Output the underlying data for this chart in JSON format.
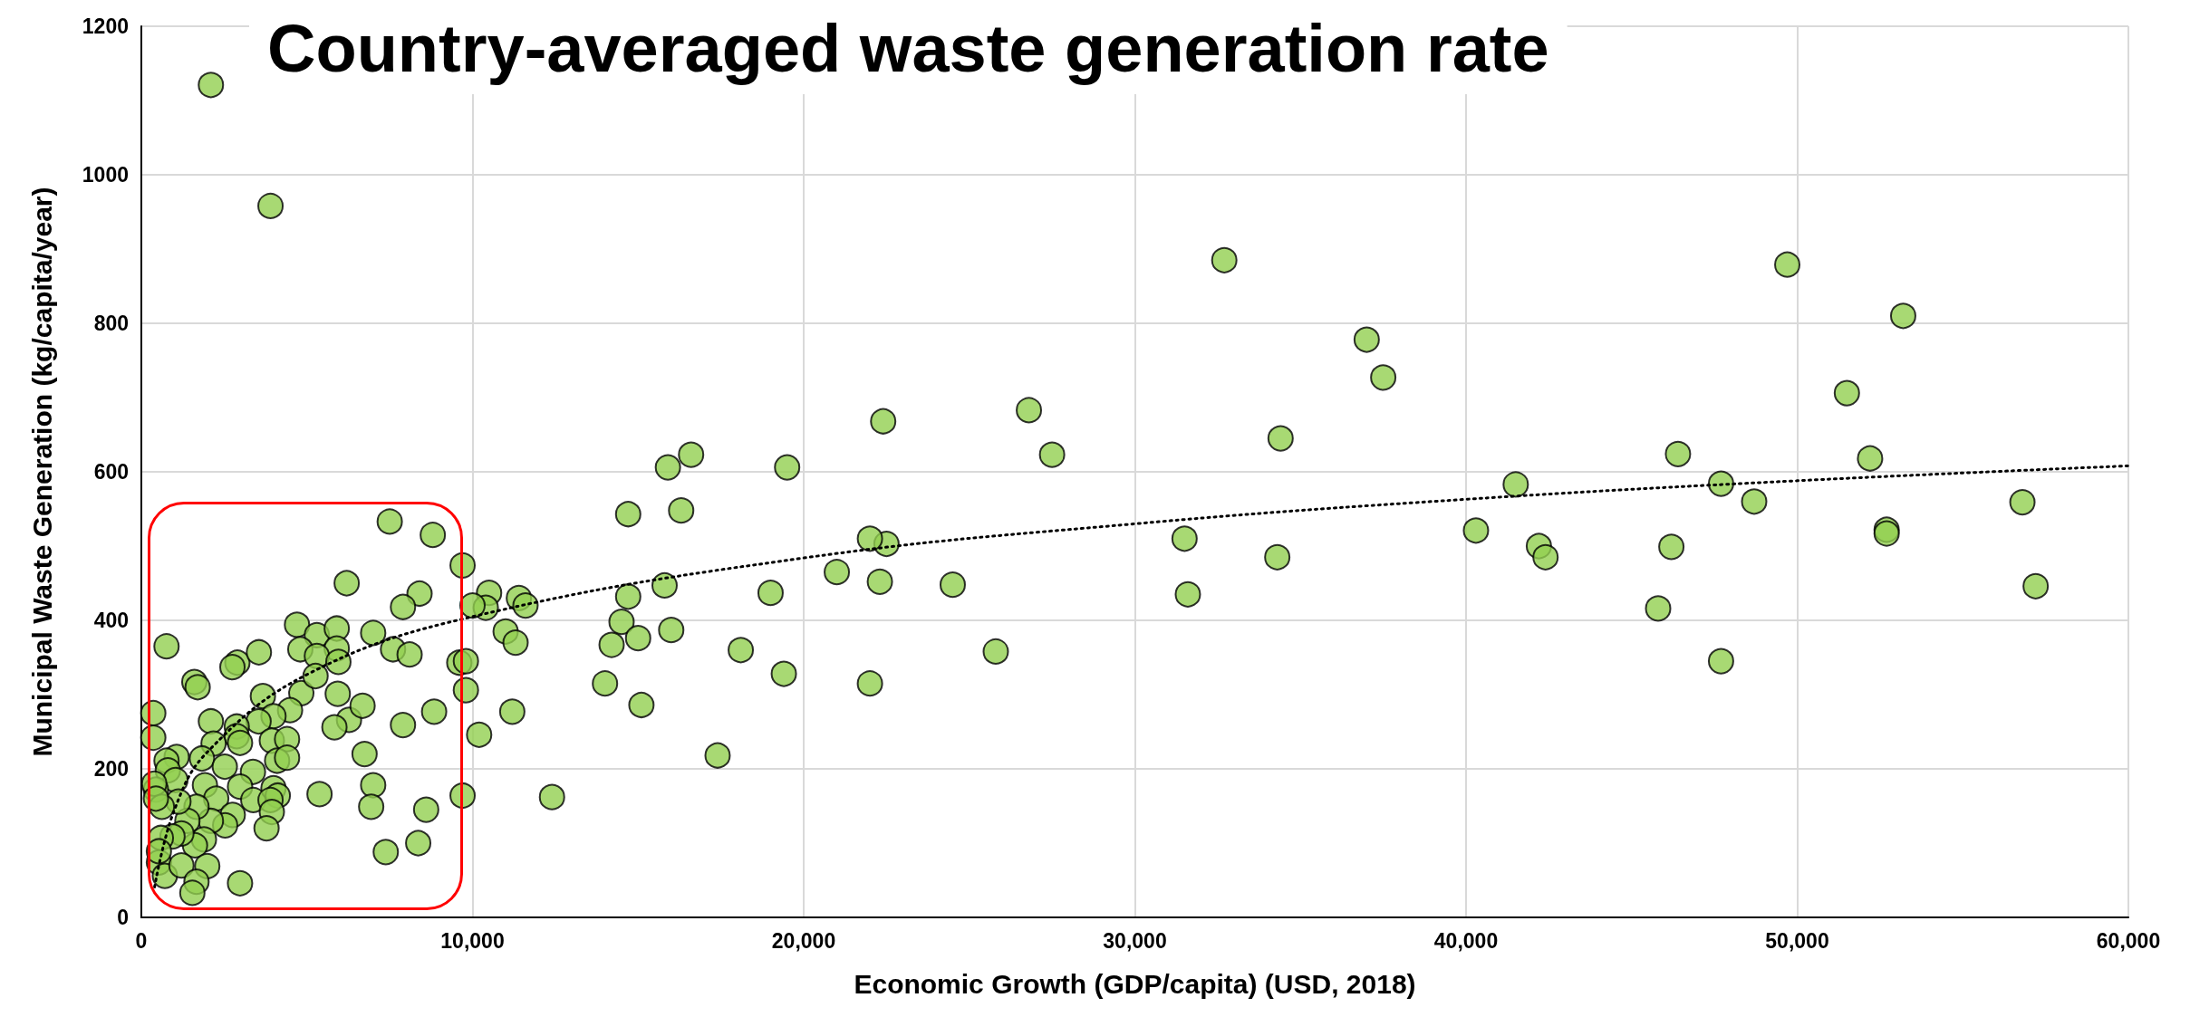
{
  "chart_data": {
    "type": "scatter",
    "title": "Country-averaged waste generation rate",
    "xlabel": "Economic Growth (GDP/capita) (USD, 2018)",
    "ylabel": "Municipal Waste Generation (kg/capita/year)",
    "xlim": [
      0,
      60000
    ],
    "ylim": [
      0,
      1200
    ],
    "xticks": [
      0,
      {
        "value": 10000,
        "label": "10,000"
      },
      {
        "value": 20000,
        "label": "20,000"
      },
      {
        "value": 30000,
        "label": "30,000"
      },
      {
        "value": 40000,
        "label": "40,000"
      },
      {
        "value": 50000,
        "label": "50,000"
      },
      {
        "value": 60000,
        "label": "60,000"
      }
    ],
    "yticks": [
      0,
      200,
      400,
      600,
      800,
      1000,
      1200
    ],
    "grid": true,
    "marker": "circle",
    "series": [
      {
        "color": "#92d050",
        "x": [
          2100,
          3900,
          32700,
          37000,
          37500,
          34400,
          34300,
          31500,
          31600,
          26800,
          27500,
          24500,
          25800,
          22400,
          22500,
          22000,
          22300,
          21000,
          22000,
          19500,
          19000,
          19400,
          18100,
          17400,
          16600,
          15900,
          16300,
          14700,
          15800,
          14700,
          14500,
          15000,
          16000,
          14200,
          14000,
          15100,
          12400,
          11400,
          11600,
          11000,
          11300,
          11200,
          10500,
          10400,
          10000,
          10200,
          9700,
          9600,
          9800,
          9800,
          9700,
          40300,
          41500,
          42200,
          42400,
          45800,
          46200,
          46400,
          47700,
          47700,
          48700,
          49700,
          51500,
          52200,
          53200,
          52700,
          52700,
          56800,
          57200,
          7500,
          8800,
          6200,
          8400,
          7900,
          760,
          4700,
          5300,
          5900,
          7000,
          4800,
          5900,
          5300,
          5950,
          7600,
          8100,
          2900,
          2750,
          3550,
          1600,
          1700,
          360,
          360,
          3670,
          4830,
          5260,
          5930,
          4490,
          3990,
          3540,
          2100,
          2880,
          2880,
          2980,
          3940,
          4400,
          4100,
          4400,
          2180,
          1830,
          6270,
          6680,
          5830,
          6740,
          7900,
          8840,
          7000,
          6940,
          5380,
          8600,
          7380,
          8360,
          2520,
          3370,
          1065,
          760,
          800,
          1030,
          440,
          390,
          1920,
          2980,
          2260,
          3380,
          3990,
          4120,
          3900,
          3940,
          3780,
          2760,
          2530,
          2100,
          1665,
          1390,
          1120,
          620,
          440,
          1890,
          1620,
          1210,
          940,
          590,
          530,
          710,
          530,
          1210,
          1990,
          1665,
          1540,
          2980
        ],
        "values": [
          1121,
          958,
          885,
          778,
          727,
          645,
          485,
          510,
          435,
          683,
          623,
          448,
          358,
          668,
          503,
          510,
          452,
          465,
          315,
          606,
          437,
          328,
          360,
          218,
          623,
          606,
          548,
          543,
          447,
          432,
          398,
          376,
          387,
          367,
          315,
          286,
          162,
          430,
          420,
          385,
          370,
          277,
          437,
          417,
          420,
          246,
          474,
          343,
          345,
          306,
          164,
          521,
          583,
          500,
          485,
          416,
          499,
          624,
          584,
          345,
          560,
          879,
          706,
          618,
          810,
          522,
          517,
          559,
          446,
          533,
          515,
          450,
          436,
          418,
          365,
          394,
          380,
          389,
          383,
          361,
          362,
          352,
          344,
          361,
          354,
          343,
          337,
          357,
          317,
          310,
          275,
          242,
          298,
          302,
          325,
          301,
          279,
          271,
          264,
          264,
          257,
          244,
          235,
          238,
          240,
          211,
          215,
          234,
          214,
          266,
          285,
          256,
          220,
          259,
          277,
          178,
          149,
          166,
          145,
          88,
          100,
          203,
          196,
          216,
          211,
          198,
          185,
          172,
          180,
          178,
          176,
          160,
          158,
          174,
          164,
          158,
          142,
          120,
          138,
          124,
          130,
          149,
          130,
          156,
          149,
          160,
          105,
          97,
          113,
          109,
          107,
          74,
          56,
          89,
          70,
          69,
          48,
          33,
          46
        ]
      },
      {
        "type": "line",
        "color": "#000000",
        "marker": "none",
        "line_style": "dotted",
        "x": [
          400,
          1000,
          2000,
          5000,
          10000,
          20000,
          30000,
          40000,
          50000,
          60000
        ],
        "values": [
          41,
          145,
          223,
          327,
          405,
          484,
          530,
          563,
          588,
          608
        ]
      }
    ]
  }
}
